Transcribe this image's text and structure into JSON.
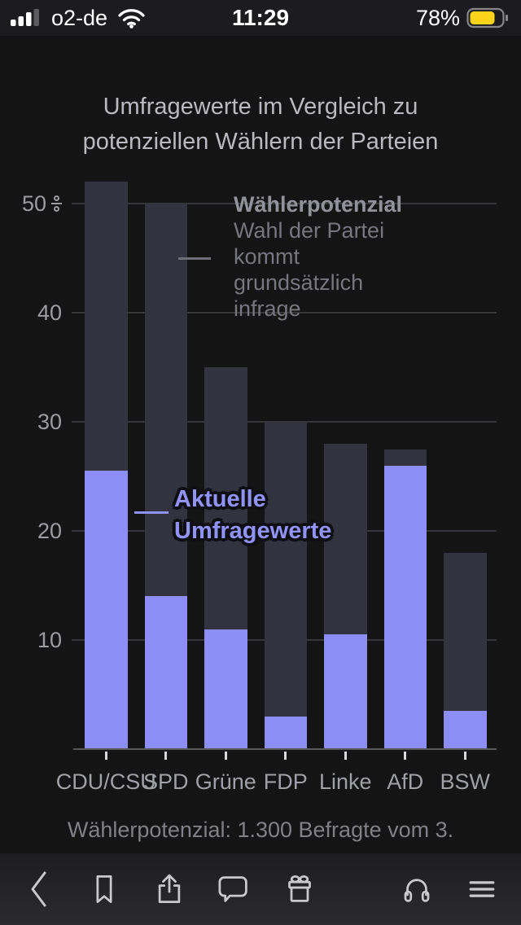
{
  "status_bar": {
    "carrier": "o2-de",
    "time": "11:29",
    "battery_percent": "78%",
    "battery_color": "#fbd31b",
    "signal_bars_filled": 3,
    "signal_bars_total": 4
  },
  "article": {
    "title_lines": [
      "Umfragewerte im Vergleich zu",
      "potenziellen Wählern der Parteien"
    ],
    "caption": "Wählerpotenzial: 1.300 Befragte vom 3."
  },
  "chart_data": {
    "type": "bar",
    "title": "Umfragewerte im Vergleich zu potenziellen Wählern der Parteien",
    "categories": [
      "CDU/CSU",
      "SPD",
      "Grüne",
      "FDP",
      "Linke",
      "AfD",
      "BSW"
    ],
    "series": [
      {
        "name": "Wählerpotenzial",
        "note": "Wahl der Partei kommt grundsätzlich infrage",
        "color": "#33333f",
        "values": [
          52,
          50,
          35,
          30,
          28,
          27.5,
          18
        ]
      },
      {
        "name": "Aktuelle Umfragewerte",
        "color": "#8c8ef5",
        "values": [
          25.5,
          14,
          11,
          3,
          10.5,
          26,
          3.5
        ]
      }
    ],
    "unit": "%",
    "yticks": [
      10,
      20,
      30,
      40,
      50
    ],
    "ylim": [
      0,
      53.5
    ],
    "grid": true,
    "legend_position": "annotated-inline"
  },
  "annotations": {
    "potential": {
      "label": "Wählerpotenzial",
      "desc_lines": [
        "Wahl der Partei",
        "kommt",
        "grundsätzlich",
        "infrage"
      ]
    },
    "current": {
      "label_lines": [
        "Aktuelle",
        "Umfragewerte"
      ]
    }
  },
  "toolbar": {
    "items": [
      "back",
      "bookmark",
      "share",
      "comments",
      "gift",
      "audio",
      "menu"
    ]
  },
  "colors": {
    "accent_purple": "#8c8ef5",
    "bar_dark": "#33333f",
    "background": "#141414"
  }
}
